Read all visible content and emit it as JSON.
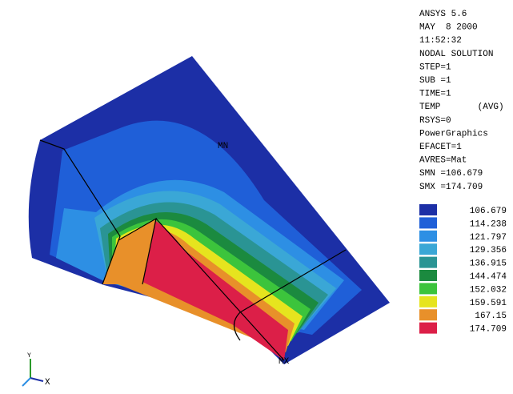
{
  "info": {
    "lines": [
      "ANSYS 5.6",
      "MAY  8 2000",
      "11:52:32",
      "NODAL SOLUTION",
      "STEP=1",
      "SUB =1",
      "TIME=1",
      "TEMP       (AVG)",
      "RSYS=0",
      "PowerGraphics",
      "EFACET=1",
      "AVRES=Mat",
      "SMN =106.679",
      "SMX =174.709"
    ]
  },
  "legend": [
    {
      "value": 106.679,
      "color": "#1c2fa6"
    },
    {
      "value": 114.238,
      "color": "#1f5fd8"
    },
    {
      "value": 121.797,
      "color": "#2d8fe4"
    },
    {
      "value": 129.356,
      "color": "#3aa7d6"
    },
    {
      "value": 136.915,
      "color": "#2a9494"
    },
    {
      "value": 144.474,
      "color": "#1b8a3f"
    },
    {
      "value": 152.032,
      "color": "#3cc43c"
    },
    {
      "value": 159.591,
      "color": "#e6e41e"
    },
    {
      "value": 167.15,
      "color": "#e8902a"
    },
    {
      "value": 174.709,
      "color": "#dc1f48"
    }
  ],
  "plot": {
    "min_label": "MN",
    "max_label": "MX"
  },
  "triad": {
    "x_label": "X",
    "y_label": "Y"
  }
}
